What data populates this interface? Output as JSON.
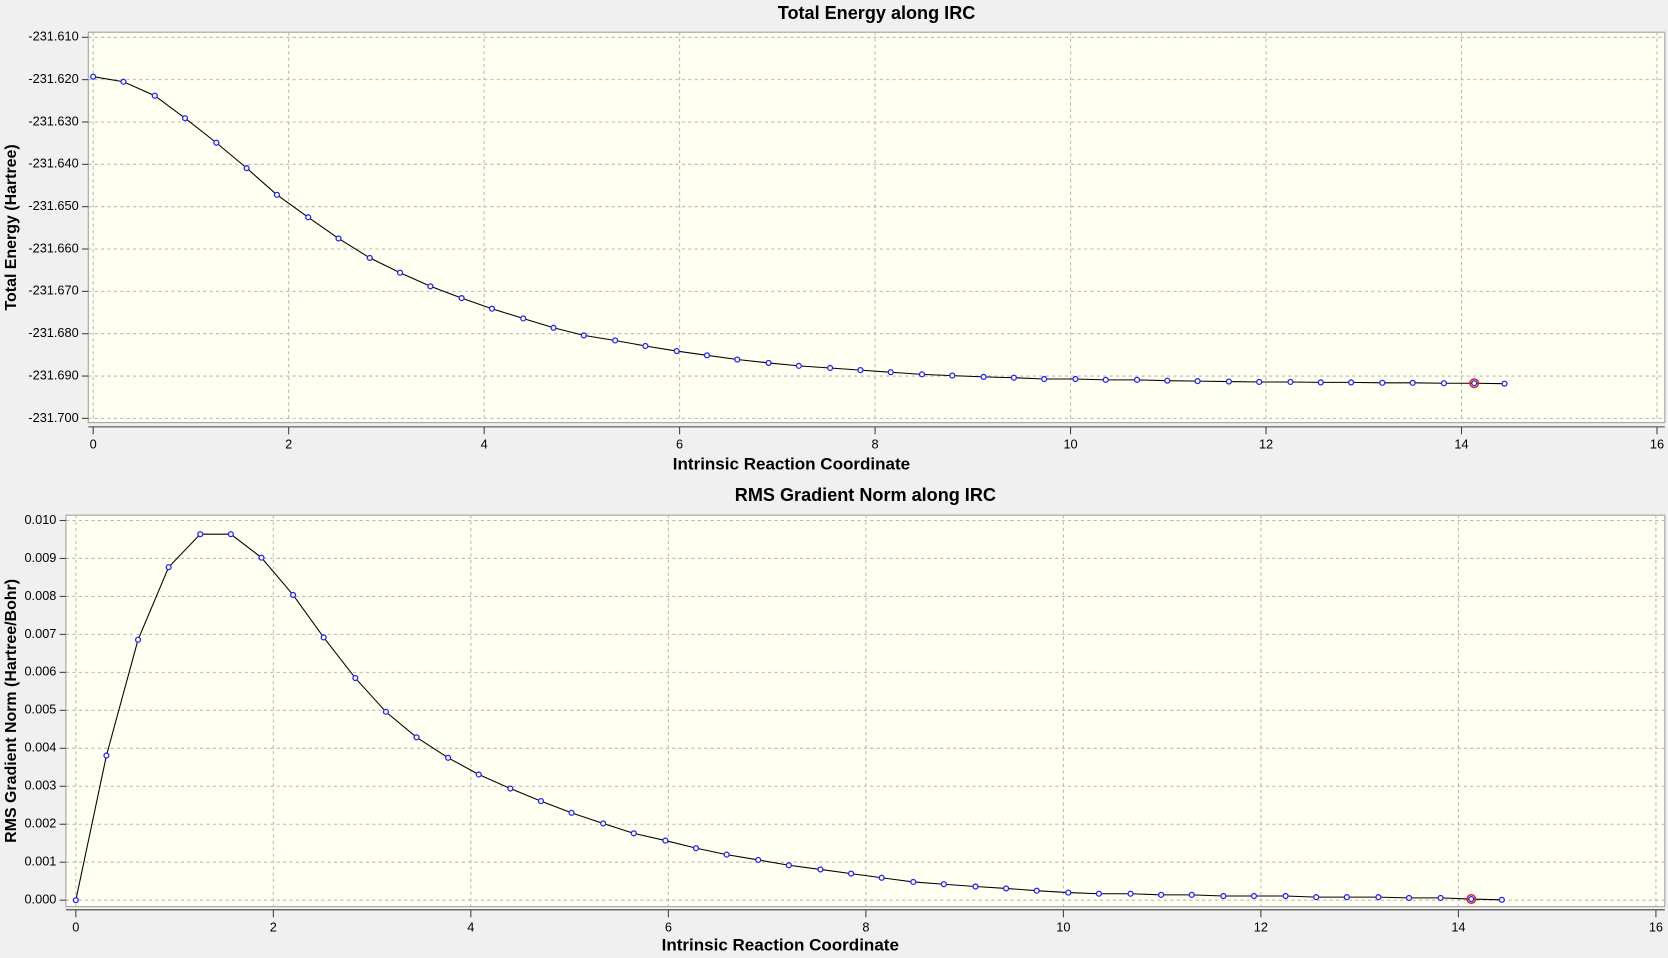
{
  "chart_data": [
    {
      "type": "line",
      "title": "Total Energy along IRC",
      "xlabel": "Intrinsic Reaction Coordinate",
      "ylabel": "Total Energy (Hartree)",
      "x": [
        0,
        0.31,
        0.63,
        0.94,
        1.26,
        1.57,
        1.88,
        2.2,
        2.51,
        2.83,
        3.14,
        3.45,
        3.77,
        4.08,
        4.4,
        4.71,
        5.02,
        5.34,
        5.65,
        5.97,
        6.28,
        6.59,
        6.91,
        7.22,
        7.54,
        7.85,
        8.16,
        8.48,
        8.79,
        9.11,
        9.42,
        9.73,
        10.05,
        10.36,
        10.68,
        10.99,
        11.3,
        11.62,
        11.93,
        12.25,
        12.56,
        12.87,
        13.19,
        13.5,
        13.82,
        14.13,
        14.44
      ],
      "values": [
        -231.6193,
        -231.6205,
        -231.6238,
        -231.6291,
        -231.6349,
        -231.6409,
        -231.6472,
        -231.6525,
        -231.6575,
        -231.6621,
        -231.6656,
        -231.6688,
        -231.6716,
        -231.6741,
        -231.6764,
        -231.6786,
        -231.6804,
        -231.6816,
        -231.6829,
        -231.6841,
        -231.6851,
        -231.6861,
        -231.6869,
        -231.6876,
        -231.6881,
        -231.6886,
        -231.6891,
        -231.6896,
        -231.6899,
        -231.6902,
        -231.6904,
        -231.6907,
        -231.6907,
        -231.6909,
        -231.6909,
        -231.6911,
        -231.6912,
        -231.6913,
        -231.6914,
        -231.6914,
        -231.6915,
        -231.6915,
        -231.6916,
        -231.6916,
        -231.6917,
        -231.6917,
        -231.6918
      ],
      "line_color": "#000000",
      "marker_color": "#2020ff",
      "highlight_point": 45,
      "highlight_color": "#e02020",
      "xlim": [
        -0.05,
        16.08
      ],
      "xticks": [
        0,
        2,
        4,
        6,
        8,
        10,
        12,
        14,
        16
      ],
      "ylim": [
        -231.701,
        -231.6088
      ],
      "yticks": [
        {
          "value": -231.61,
          "label": "-231.610"
        },
        {
          "value": -231.62,
          "label": "-231.620"
        },
        {
          "value": -231.63,
          "label": "-231.630"
        },
        {
          "value": -231.64,
          "label": "-231.640"
        },
        {
          "value": -231.65,
          "label": "-231.650"
        },
        {
          "value": -231.66,
          "label": "-231.660"
        },
        {
          "value": -231.67,
          "label": "-231.670"
        },
        {
          "value": -231.68,
          "label": "-231.680"
        },
        {
          "value": -231.69,
          "label": "-231.690"
        },
        {
          "value": -231.7,
          "label": "-231.700"
        }
      ],
      "grid": true
    },
    {
      "type": "line",
      "title": "RMS Gradient Norm along IRC",
      "xlabel": "Intrinsic Reaction Coordinate",
      "ylabel": "RMS Gradient Norm (Hartree/Bohr)",
      "x": [
        0,
        0.31,
        0.63,
        0.94,
        1.26,
        1.57,
        1.88,
        2.2,
        2.51,
        2.83,
        3.14,
        3.45,
        3.77,
        4.08,
        4.4,
        4.71,
        5.02,
        5.34,
        5.65,
        5.97,
        6.28,
        6.59,
        6.91,
        7.22,
        7.54,
        7.85,
        8.16,
        8.48,
        8.79,
        9.11,
        9.42,
        9.73,
        10.05,
        10.36,
        10.68,
        10.99,
        11.3,
        11.62,
        11.93,
        12.25,
        12.56,
        12.87,
        13.19,
        13.5,
        13.82,
        14.13,
        14.44
      ],
      "values": [
        0,
        0.00381,
        0.00686,
        0.00877,
        0.00964,
        0.00964,
        0.00902,
        0.00804,
        0.00692,
        0.00585,
        0.00496,
        0.00429,
        0.00375,
        0.00331,
        0.00294,
        0.00261,
        0.0023,
        0.00202,
        0.00176,
        0.00157,
        0.00137,
        0.0012,
        0.00106,
        0.00092,
        0.00081,
        0.0007,
        0.00059,
        0.00048,
        0.00042,
        0.00036,
        0.00031,
        0.00025,
        0.0002,
        0.00017,
        0.00017,
        0.00014,
        0.00014,
        0.00011,
        0.00011,
        0.00011,
        8e-05,
        8e-05,
        8e-05,
        6e-05,
        6e-05,
        3e-05,
        1e-05
      ],
      "line_color": "#000000",
      "marker_color": "#2020ff",
      "highlight_point": 45,
      "highlight_color": "#e02020",
      "xlim": [
        -0.1,
        16.09
      ],
      "xticks": [
        0,
        2,
        4,
        6,
        8,
        10,
        12,
        14,
        16
      ],
      "ylim": [
        -0.00017,
        0.01014
      ],
      "yticks": [
        {
          "value": 0,
          "label": "0.000"
        },
        {
          "value": 0.001,
          "label": "0.001"
        },
        {
          "value": 0.002,
          "label": "0.002"
        },
        {
          "value": 0.003,
          "label": "0.003"
        },
        {
          "value": 0.004,
          "label": "0.004"
        },
        {
          "value": 0.005,
          "label": "0.005"
        },
        {
          "value": 0.006,
          "label": "0.006"
        },
        {
          "value": 0.007,
          "label": "0.007"
        },
        {
          "value": 0.008,
          "label": "0.008"
        },
        {
          "value": 0.009,
          "label": "0.009"
        },
        {
          "value": 0.01,
          "label": "0.010"
        }
      ],
      "grid": true
    }
  ]
}
